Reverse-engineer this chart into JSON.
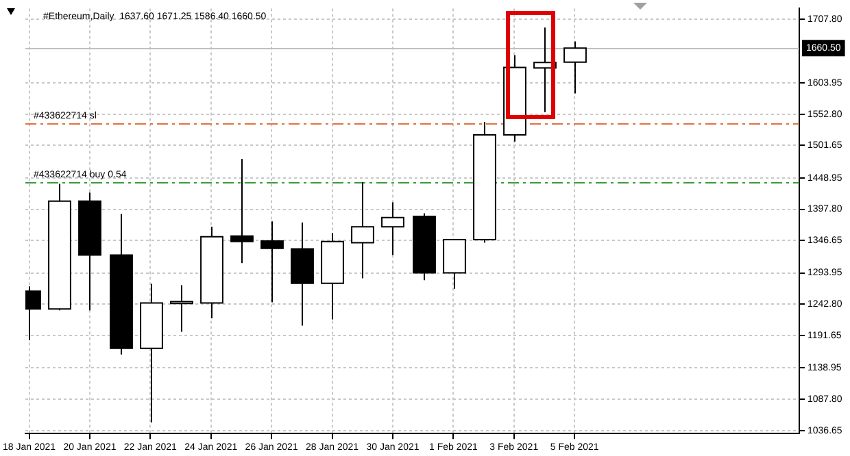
{
  "chart_data": {
    "type": "candlestick",
    "title": "#Ethereum,Daily  1637.60 1671.25 1586.40 1660.50",
    "x": [
      "2021-01-18",
      "2021-01-19",
      "2021-01-20",
      "2021-01-21",
      "2021-01-22",
      "2021-01-23",
      "2021-01-24",
      "2021-01-25",
      "2021-01-26",
      "2021-01-27",
      "2021-01-28",
      "2021-01-29",
      "2021-01-30",
      "2021-01-31",
      "2021-02-01",
      "2021-02-02",
      "2021-02-03",
      "2021-02-04",
      "2021-02-05"
    ],
    "ohlc": [
      [
        1264,
        1272,
        1184,
        1235
      ],
      [
        1235,
        1439,
        1233,
        1411
      ],
      [
        1411,
        1425,
        1233,
        1323
      ],
      [
        1323,
        1390,
        1161,
        1171
      ],
      [
        1171,
        1276,
        1050,
        1245
      ],
      [
        1244,
        1274,
        1198,
        1247
      ],
      [
        1245,
        1369,
        1220,
        1353
      ],
      [
        1354,
        1480,
        1310,
        1345
      ],
      [
        1346,
        1378,
        1246,
        1334
      ],
      [
        1333,
        1376,
        1208,
        1277
      ],
      [
        1277,
        1359,
        1218,
        1345
      ],
      [
        1343,
        1442,
        1285,
        1369
      ],
      [
        1369,
        1409,
        1323,
        1384
      ],
      [
        1386,
        1391,
        1282,
        1294
      ],
      [
        1294,
        1348,
        1268,
        1348
      ],
      [
        1348,
        1540,
        1343,
        1519
      ],
      [
        1519,
        1649,
        1508,
        1629
      ],
      [
        1628,
        1694,
        1556,
        1637
      ],
      [
        1637.6,
        1671.25,
        1586.4,
        1660.5
      ]
    ],
    "color": "#000000",
    "colors": [
      "#000000",
      "#ffffff",
      "#000000",
      "#000000",
      "#ffffff",
      "#ffffff",
      "#ffffff",
      "#000000",
      "#000000",
      "#000000",
      "#ffffff",
      "#ffffff",
      "#ffffff",
      "#000000",
      "#ffffff",
      "#ffffff",
      "#ffffff",
      "#ffffff",
      "#ffffff"
    ],
    "xlim": [
      "2021-01-17T21:00",
      "2021-02-12T10:00"
    ],
    "xticks": [
      {
        "value": "2021-01-18",
        "label": "18 Jan 2021"
      },
      {
        "value": "2021-01-20",
        "label": "20 Jan 2021"
      },
      {
        "value": "2021-01-22",
        "label": "22 Jan 2021"
      },
      {
        "value": "2021-01-24",
        "label": "24 Jan 2021"
      },
      {
        "value": "2021-01-26",
        "label": "26 Jan 2021"
      },
      {
        "value": "2021-01-28",
        "label": "28 Jan 2021"
      },
      {
        "value": "2021-01-30",
        "label": "30 Jan 2021"
      },
      {
        "value": "2021-02-01",
        "label": "1 Feb 2021"
      },
      {
        "value": "2021-02-03",
        "label": "3 Feb 2021"
      },
      {
        "value": "2021-02-05",
        "label": "5 Feb 2021"
      }
    ],
    "ylim": [
      1032,
      1725
    ],
    "yticks": [
      {
        "value": 1036.65,
        "label": "1036.65"
      },
      {
        "value": 1087.8,
        "label": "1087.80"
      },
      {
        "value": 1138.95,
        "label": "1138.95"
      },
      {
        "value": 1191.65,
        "label": "1191.65"
      },
      {
        "value": 1242.8,
        "label": "1242.80"
      },
      {
        "value": 1293.95,
        "label": "1293.95"
      },
      {
        "value": 1346.65,
        "label": "1346.65"
      },
      {
        "value": 1397.8,
        "label": "1397.80"
      },
      {
        "value": 1448.95,
        "label": "1448.95"
      },
      {
        "value": 1501.65,
        "label": "1501.65"
      },
      {
        "value": 1552.8,
        "label": "1552.80"
      },
      {
        "value": 1603.95,
        "label": "1603.95"
      },
      {
        "value": 1707.8,
        "label": "1707.80"
      }
    ],
    "grid": true,
    "ref_lines": [
      {
        "axis": "y",
        "value": 1537.7,
        "label": "#433622714 sl",
        "color": "#e2703a",
        "line_style": "dashed"
      },
      {
        "axis": "y",
        "value": 1442.3,
        "label": "#433622714 buy 0.54",
        "color": "#3a9a3a",
        "line_style": "dashed"
      },
      {
        "axis": "y",
        "value": 1660.5,
        "label": "1660.50",
        "color": "#c0c0c0",
        "line_style": "solid"
      }
    ]
  }
}
